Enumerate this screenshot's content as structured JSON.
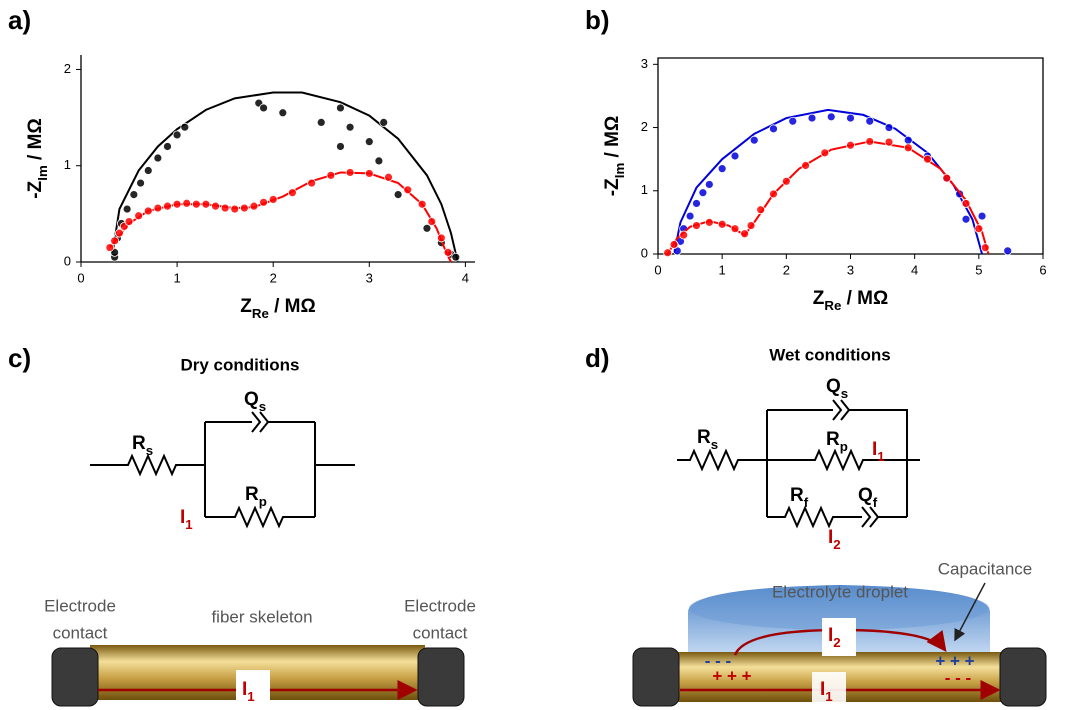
{
  "panel_labels": [
    "a)",
    "b)",
    "c)",
    "d)"
  ],
  "chart_data": [
    {
      "type": "scatter",
      "frame": false,
      "x_label": {
        "main": "Z",
        "sub": "Re",
        "rest": " / MΩ"
      },
      "y_label": {
        "main": "-Z",
        "sub": "Im",
        "rest": " / MΩ"
      },
      "xlim": [
        0,
        4.1
      ],
      "ylim": [
        0,
        2.15
      ],
      "xticks": [
        0,
        1,
        2,
        3,
        4
      ],
      "yticks": [
        0,
        1,
        2
      ],
      "series": [
        {
          "color": "#000000",
          "mode": "line",
          "x": [
            0.33,
            0.4,
            0.6,
            0.8,
            1.0,
            1.3,
            1.6,
            2.0,
            2.3,
            2.7,
            3.0,
            3.3,
            3.6,
            3.75,
            3.85,
            3.92
          ],
          "values": [
            0.1,
            0.55,
            0.95,
            1.2,
            1.38,
            1.58,
            1.7,
            1.76,
            1.76,
            1.66,
            1.52,
            1.28,
            0.9,
            0.6,
            0.3,
            0
          ]
        },
        {
          "color": "#000000",
          "mode": "markers",
          "x": [
            0.35,
            0.35,
            0.38,
            0.42,
            0.48,
            0.55,
            0.62,
            0.7,
            0.8,
            0.9,
            1.0,
            1.08,
            1.85,
            1.9,
            2.1,
            2.5,
            2.7,
            2.8,
            2.7,
            3.0,
            3.15,
            3.1,
            3.3,
            3.6,
            3.75,
            3.85,
            3.9
          ],
          "values": [
            0.05,
            0.1,
            0.25,
            0.4,
            0.55,
            0.7,
            0.82,
            0.95,
            1.08,
            1.2,
            1.32,
            1.4,
            1.65,
            1.6,
            1.55,
            1.45,
            1.6,
            1.4,
            1.2,
            1.25,
            1.45,
            1.05,
            0.7,
            0.35,
            0.2,
            0.08,
            0.05
          ]
        },
        {
          "color": "#ff0000",
          "mode": "line",
          "x": [
            0.3,
            0.5,
            0.7,
            1.0,
            1.3,
            1.6,
            1.8,
            2.1,
            2.4,
            2.7,
            3.0,
            3.3,
            3.55,
            3.7,
            3.8,
            3.85
          ],
          "values": [
            0.15,
            0.4,
            0.53,
            0.6,
            0.6,
            0.56,
            0.57,
            0.68,
            0.84,
            0.93,
            0.92,
            0.82,
            0.6,
            0.35,
            0.1,
            0
          ]
        },
        {
          "color": "#ff0000",
          "mode": "markers",
          "x": [
            0.3,
            0.35,
            0.4,
            0.45,
            0.5,
            0.6,
            0.7,
            0.8,
            0.9,
            1.0,
            1.1,
            1.2,
            1.3,
            1.4,
            1.5,
            1.6,
            1.7,
            1.8,
            1.9,
            2.0,
            2.2,
            2.4,
            2.6,
            2.8,
            3.0,
            3.2,
            3.4,
            3.55,
            3.65,
            3.75,
            3.82
          ],
          "values": [
            0.15,
            0.22,
            0.3,
            0.37,
            0.42,
            0.48,
            0.53,
            0.56,
            0.58,
            0.6,
            0.61,
            0.6,
            0.6,
            0.58,
            0.56,
            0.55,
            0.56,
            0.58,
            0.62,
            0.65,
            0.72,
            0.82,
            0.9,
            0.93,
            0.92,
            0.88,
            0.75,
            0.6,
            0.42,
            0.25,
            0.1
          ]
        }
      ]
    },
    {
      "type": "scatter",
      "frame": true,
      "x_label": {
        "main": "Z",
        "sub": "Re",
        "rest": " / MΩ"
      },
      "y_label": {
        "main": "-Z",
        "sub": "Im",
        "rest": " / MΩ"
      },
      "xlim": [
        0,
        6
      ],
      "ylim": [
        0,
        3.1
      ],
      "xticks": [
        0,
        1,
        2,
        3,
        4,
        5,
        6
      ],
      "yticks": [
        0,
        1,
        2,
        3
      ],
      "series": [
        {
          "color": "#0000dd",
          "mode": "line",
          "x": [
            0.25,
            0.35,
            0.6,
            1.0,
            1.5,
            2.0,
            2.65,
            3.2,
            3.7,
            4.2,
            4.6,
            4.9,
            5.05
          ],
          "values": [
            0,
            0.5,
            1.05,
            1.5,
            1.9,
            2.15,
            2.28,
            2.2,
            1.98,
            1.6,
            1.1,
            0.55,
            0
          ]
        },
        {
          "color": "#0000dd",
          "mode": "markers",
          "x": [
            0.3,
            0.35,
            0.4,
            0.5,
            0.6,
            0.7,
            0.8,
            1.0,
            1.2,
            1.5,
            1.8,
            2.1,
            2.4,
            2.7,
            3.0,
            3.3,
            3.6,
            3.9,
            4.2,
            4.5,
            4.7,
            4.8,
            5.05,
            5.45
          ],
          "values": [
            0.05,
            0.2,
            0.4,
            0.6,
            0.8,
            0.97,
            1.1,
            1.35,
            1.55,
            1.8,
            1.98,
            2.1,
            2.15,
            2.17,
            2.15,
            2.1,
            2.0,
            1.8,
            1.55,
            1.2,
            0.95,
            0.55,
            0.6,
            0.05
          ]
        },
        {
          "color": "#ff0000",
          "mode": "line",
          "x": [
            0.15,
            0.3,
            0.5,
            0.8,
            1.1,
            1.35,
            1.5,
            1.8,
            2.2,
            2.7,
            3.3,
            3.9,
            4.4,
            4.8,
            5.05,
            5.15
          ],
          "values": [
            0,
            0.25,
            0.43,
            0.52,
            0.45,
            0.3,
            0.5,
            0.95,
            1.35,
            1.65,
            1.78,
            1.68,
            1.35,
            0.85,
            0.35,
            0
          ]
        },
        {
          "color": "#ff0000",
          "mode": "markers",
          "x": [
            0.15,
            0.25,
            0.4,
            0.6,
            0.8,
            1.0,
            1.2,
            1.35,
            1.45,
            1.6,
            1.8,
            2.0,
            2.3,
            2.6,
            3.0,
            3.3,
            3.6,
            3.9,
            4.2,
            4.5,
            4.8,
            5.0,
            5.1
          ],
          "values": [
            0.02,
            0.15,
            0.3,
            0.45,
            0.5,
            0.47,
            0.4,
            0.32,
            0.45,
            0.7,
            0.95,
            1.15,
            1.4,
            1.6,
            1.72,
            1.78,
            1.77,
            1.68,
            1.5,
            1.2,
            0.8,
            0.4,
            0.1
          ]
        }
      ]
    }
  ],
  "dry": {
    "title": "Dry conditions",
    "Rs": {
      "main": "R",
      "sub": "s"
    },
    "Qs": {
      "main": "Q",
      "sub": "s"
    },
    "Rp": {
      "main": "R",
      "sub": "p"
    },
    "I1": {
      "main": "I",
      "sub": "1"
    },
    "electrode_left": [
      "Electrode",
      "contact"
    ],
    "electrode_right": [
      "Electrode",
      "contact"
    ],
    "fiber": "fiber skeleton",
    "rod_current": {
      "main": "I",
      "sub": "1"
    }
  },
  "wet": {
    "title": "Wet conditions",
    "Rs": {
      "main": "R",
      "sub": "s"
    },
    "Qs": {
      "main": "Q",
      "sub": "s"
    },
    "Rp": {
      "main": "R",
      "sub": "p"
    },
    "I1": {
      "main": "I",
      "sub": "1"
    },
    "Rf": {
      "main": "R",
      "sub": "f"
    },
    "Qf": {
      "main": "Q",
      "sub": "f"
    },
    "I2": {
      "main": "I",
      "sub": "2"
    },
    "droplet": "Electrolyte droplet",
    "capacitance": "Capacitance",
    "charges": [
      "- - -",
      "+ + +",
      "+ + +",
      "- - -"
    ],
    "drop_current": {
      "main": "I",
      "sub": "2"
    },
    "rod_current": {
      "main": "I",
      "sub": "1"
    }
  }
}
